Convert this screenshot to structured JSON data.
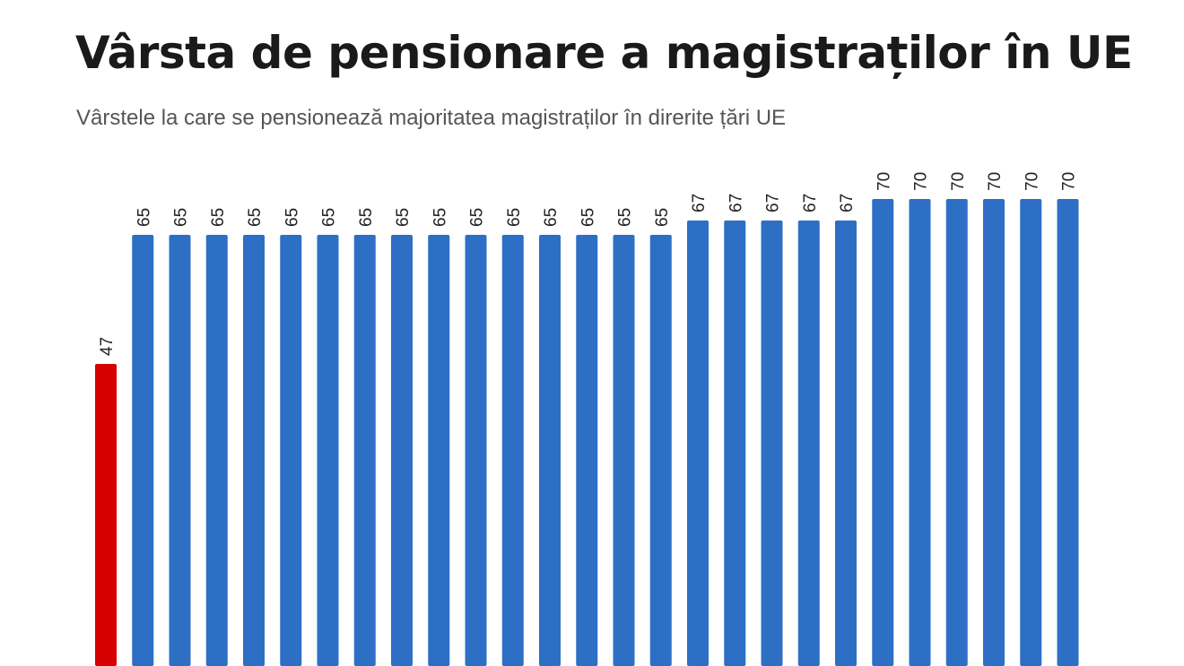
{
  "chart_data": {
    "type": "bar",
    "title": "Vârsta de pensionare a magistraților în UE",
    "subtitle": "Vârstele la care se pensionează majoritatea magistraților în direrite țări UE",
    "values": [
      47,
      65,
      65,
      65,
      65,
      65,
      65,
      65,
      65,
      65,
      65,
      65,
      65,
      65,
      65,
      65,
      67,
      67,
      67,
      67,
      67,
      70,
      70,
      70,
      70,
      70,
      70
    ],
    "highlight_index": 0,
    "colors": {
      "default": "#2D6FC4",
      "highlight": "#D60000"
    },
    "ylim": [
      0,
      70
    ],
    "grid": false,
    "data_labels": true
  }
}
